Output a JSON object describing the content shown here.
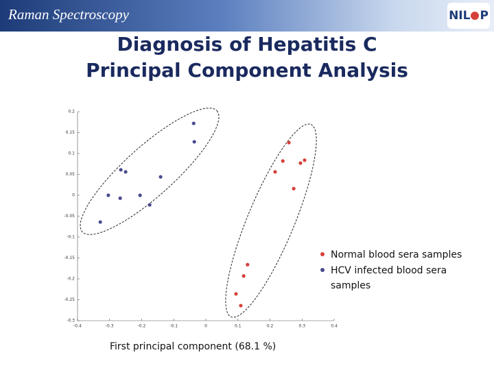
{
  "header": {
    "text": "Raman Spectroscopy",
    "logo_text": [
      "NIL",
      "P"
    ]
  },
  "chart_data": {
    "type": "scatter",
    "title": [
      "Diagnosis of Hepatitis C",
      "Principal Component Analysis"
    ],
    "x_label": "First principal component (68.1 %)",
    "xlim": [
      -0.4,
      0.4
    ],
    "xticks": [
      -0.4,
      -0.3,
      -0.2,
      -0.1,
      0,
      0.1,
      0.2,
      0.3,
      0.4
    ],
    "ylim": [
      -0.3,
      0.2
    ],
    "yticks": [
      0.2,
      0.15,
      0.1,
      0.05,
      0,
      -0.05,
      -0.1,
      -0.15,
      -0.2,
      -0.25,
      -0.3
    ],
    "legend": "right",
    "series": [
      {
        "name": "Normal blood sera samples",
        "color": "#d6403a",
        "x": [
          0.259,
          0.24,
          0.216,
          0.295,
          0.308,
          0.274,
          0.13,
          0.118,
          0.094,
          0.109
        ],
        "values": [
          0.126,
          0.082,
          0.056,
          0.077,
          0.084,
          0.016,
          -0.166,
          -0.193,
          -0.236,
          -0.264
        ]
      },
      {
        "name": "HCV infected blood sera samples",
        "color": "#4b4b8f",
        "x": [
          -0.038,
          -0.036,
          -0.265,
          -0.25,
          -0.141,
          -0.304,
          -0.267,
          -0.205,
          -0.175,
          -0.329
        ],
        "values": [
          0.172,
          0.128,
          0.061,
          0.056,
          0.044,
          0.0,
          -0.007,
          0.0,
          -0.023,
          -0.064
        ]
      }
    ]
  }
}
